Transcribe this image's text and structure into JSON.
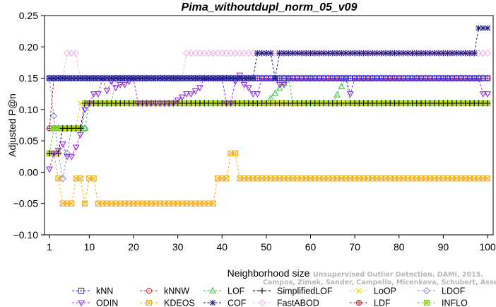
{
  "chart_data": {
    "type": "line",
    "title": "Pima_withoutdupl_norm_05_v09",
    "xlabel": "Neighborhood size",
    "ylabel": "Adjusted P@n",
    "xlim": [
      0,
      101
    ],
    "ylim": [
      -0.1,
      0.25
    ],
    "x_ticks": [
      1,
      10,
      20,
      30,
      40,
      50,
      60,
      70,
      80,
      90,
      100
    ],
    "y_ticks": [
      -0.1,
      -0.05,
      0.0,
      0.05,
      0.1,
      0.15,
      0.2,
      0.25
    ],
    "y_tick_labels": [
      "−0.10",
      "−0.05",
      "0.00",
      "0.05",
      "0.10",
      "0.15",
      "0.20",
      "0.25"
    ],
    "grid": false,
    "legend_position": "bottom",
    "series": [
      {
        "name": "kNN",
        "color": "#3a3ad6",
        "marker": "square",
        "points": [
          [
            1,
            0.15
          ],
          [
            100,
            0.15
          ]
        ]
      },
      {
        "name": "kNNW",
        "color": "#e03030",
        "marker": "circle",
        "points": [
          [
            1,
            0.07
          ],
          [
            2,
            0.15
          ],
          [
            100,
            0.15
          ]
        ]
      },
      {
        "name": "LOF",
        "color": "#44cc44",
        "marker": "triangle-up",
        "points": [
          [
            1,
            0.03
          ],
          [
            2,
            0.07
          ],
          [
            9,
            0.07
          ],
          [
            10,
            0.11
          ],
          [
            50,
            0.11
          ],
          [
            55,
            0.15
          ],
          [
            56,
            0.11
          ],
          [
            65,
            0.11
          ],
          [
            68,
            0.15
          ],
          [
            69,
            0.11
          ],
          [
            100,
            0.11
          ]
        ]
      },
      {
        "name": "SimplifiedLOF",
        "color": "#000000",
        "marker": "plus",
        "points": [
          [
            1,
            0.03
          ],
          [
            3,
            0.03
          ],
          [
            4,
            0.07
          ],
          [
            8,
            0.07
          ],
          [
            9,
            0.11
          ],
          [
            100,
            0.11
          ]
        ]
      },
      {
        "name": "LoOP",
        "color": "#e8d800",
        "marker": "x",
        "points": [
          [
            1,
            0.03
          ],
          [
            3,
            0.03
          ],
          [
            4,
            0.07
          ],
          [
            7,
            0.07
          ],
          [
            8,
            0.11
          ],
          [
            100,
            0.11
          ]
        ]
      },
      {
        "name": "LDOF",
        "color": "#9090e0",
        "marker": "diamond",
        "points": [
          [
            1,
            0.15
          ],
          [
            3,
            0.03
          ],
          [
            4,
            -0.01
          ],
          [
            5,
            0.03
          ],
          [
            6,
            0.07
          ],
          [
            9,
            0.07
          ],
          [
            10,
            0.11
          ],
          [
            15,
            0.11
          ],
          [
            16,
            0.15
          ],
          [
            100,
            0.15
          ]
        ]
      },
      {
        "name": "ODIN",
        "color": "#9030e0",
        "marker": "triangle-down",
        "points": [
          [
            1,
            0.005
          ],
          [
            2,
            0.03
          ],
          [
            3,
            0.035
          ],
          [
            4,
            0.045
          ],
          [
            5,
            0.025
          ],
          [
            6,
            0.025
          ],
          [
            7,
            0.04
          ],
          [
            8,
            0.06
          ],
          [
            9,
            0.1
          ],
          [
            10,
            0.11
          ],
          [
            11,
            0.125
          ],
          [
            12,
            0.125
          ],
          [
            13,
            0.15
          ],
          [
            14,
            0.13
          ],
          [
            15,
            0.145
          ],
          [
            16,
            0.135
          ],
          [
            17,
            0.14
          ],
          [
            18,
            0.14
          ],
          [
            19,
            0.145
          ],
          [
            20,
            0.15
          ],
          [
            21,
            0.11
          ],
          [
            29,
            0.11
          ],
          [
            30,
            0.115
          ],
          [
            31,
            0.12
          ],
          [
            32,
            0.125
          ],
          [
            33,
            0.125
          ],
          [
            34,
            0.13
          ],
          [
            35,
            0.135
          ],
          [
            36,
            0.15
          ],
          [
            40,
            0.15
          ],
          [
            41,
            0.11
          ],
          [
            42,
            0.11
          ],
          [
            43,
            0.145
          ],
          [
            44,
            0.155
          ],
          [
            45,
            0.14
          ],
          [
            46,
            0.135
          ],
          [
            47,
            0.125
          ],
          [
            48,
            0.125
          ],
          [
            49,
            0.15
          ],
          [
            52,
            0.15
          ],
          [
            53,
            0.14
          ],
          [
            54,
            0.14
          ],
          [
            55,
            0.15
          ],
          [
            68,
            0.15
          ],
          [
            69,
            0.125
          ],
          [
            70,
            0.15
          ],
          [
            98,
            0.15
          ],
          [
            99,
            0.125
          ],
          [
            100,
            0.125
          ]
        ]
      },
      {
        "name": "KDEOS",
        "color": "#f0b020",
        "marker": "boxed-x",
        "points": [
          [
            1,
            0.03
          ],
          [
            2,
            0.03
          ],
          [
            3,
            -0.01
          ],
          [
            4,
            -0.05
          ],
          [
            6,
            -0.05
          ],
          [
            7,
            -0.01
          ],
          [
            8,
            -0.01
          ],
          [
            9,
            -0.05
          ],
          [
            10,
            -0.01
          ],
          [
            11,
            -0.01
          ],
          [
            12,
            -0.05
          ],
          [
            38,
            -0.05
          ],
          [
            39,
            -0.01
          ],
          [
            41,
            -0.01
          ],
          [
            42,
            0.03
          ],
          [
            43,
            0.03
          ],
          [
            44,
            -0.01
          ],
          [
            100,
            -0.01
          ]
        ]
      },
      {
        "name": "COF",
        "color": "#1a1a80",
        "marker": "asterisk",
        "points": [
          [
            1,
            0.15
          ],
          [
            46,
            0.15
          ],
          [
            47,
            0.15
          ],
          [
            48,
            0.19
          ],
          [
            51,
            0.19
          ],
          [
            52,
            0.15
          ],
          [
            53,
            0.19
          ],
          [
            97,
            0.19
          ],
          [
            98,
            0.23
          ],
          [
            100,
            0.23
          ]
        ]
      },
      {
        "name": "FastABOD",
        "color": "#f0b8e8",
        "marker": "diamond",
        "points": [
          [
            1,
            0.15
          ],
          [
            4,
            0.15
          ],
          [
            5,
            0.19
          ],
          [
            7,
            0.19
          ],
          [
            8,
            0.15
          ],
          [
            31,
            0.15
          ],
          [
            32,
            0.19
          ],
          [
            100,
            0.19
          ]
        ]
      },
      {
        "name": "LDF",
        "color": "#b03040",
        "marker": "circle-plus",
        "points": [
          [
            1,
            0.07
          ],
          [
            2,
            0.15
          ],
          [
            100,
            0.15
          ]
        ]
      },
      {
        "name": "INFLO",
        "color": "#88d020",
        "marker": "boxed-asterisk",
        "points": [
          [
            1,
            0.03
          ],
          [
            2,
            0.07
          ],
          [
            8,
            0.07
          ],
          [
            9,
            0.11
          ],
          [
            100,
            0.11
          ]
        ]
      }
    ],
    "watermark": "Campos, Zimek, Sander, Campello, Micenkova, Schubert, Assent, Houle"
  },
  "legend_order": [
    "kNN",
    "kNNW",
    "LOF",
    "SimplifiedLOF",
    "LoOP",
    "LDOF",
    "ODIN",
    "KDEOS",
    "COF",
    "FastABOD",
    "LDF",
    "INFLO"
  ],
  "watermark_line1": "Unsupervised Outlier Detection. DAMI, 2015."
}
